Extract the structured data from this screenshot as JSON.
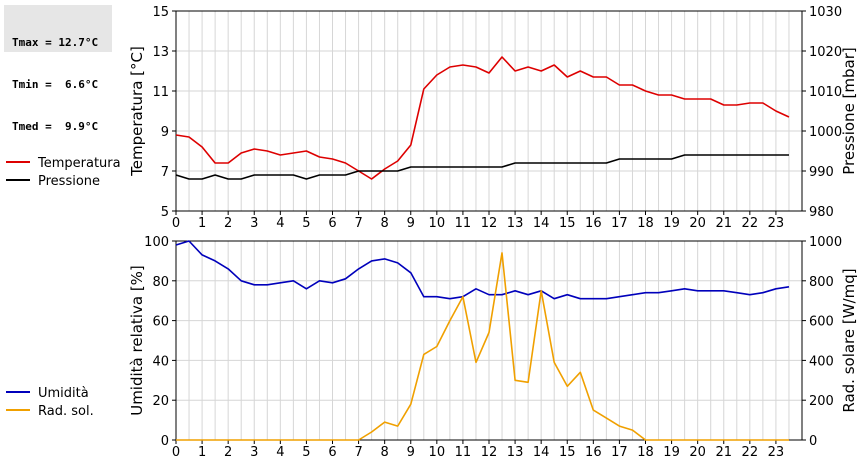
{
  "stats": {
    "tmax": "Tmax = 12.7°C",
    "tmin": "Tmin =  6.6°C",
    "tmed": "Tmed =  9.9°C"
  },
  "colors": {
    "temperature": "#dd0000",
    "pressure": "#000000",
    "humidity": "#0000bb",
    "solar": "#f0a000",
    "grid": "#d6d6d6"
  },
  "chart_data": [
    {
      "type": "line",
      "title": "",
      "x_ticks": [
        "0",
        "1",
        "2",
        "3",
        "4",
        "5",
        "6",
        "7",
        "8",
        "9",
        "10",
        "11",
        "12",
        "13",
        "14",
        "15",
        "16",
        "17",
        "18",
        "19",
        "20",
        "21",
        "22",
        "23"
      ],
      "xlim": [
        0,
        24
      ],
      "ylabel": "Temperatura [°C]",
      "ylim": [
        5,
        15
      ],
      "y_ticks": [
        "5",
        "7",
        "9",
        "11",
        "13",
        "15"
      ],
      "y2label": "Pressione [mbar]",
      "y2lim": [
        980,
        1030
      ],
      "y2_ticks": [
        "980",
        "990",
        "1000",
        "1010",
        "1020",
        "1030"
      ],
      "grid": true,
      "legend_position": "left",
      "series": [
        {
          "name": "Temperatura",
          "axis": "left",
          "x": [
            0,
            0.5,
            1,
            1.5,
            2,
            2.5,
            3,
            3.5,
            4,
            4.5,
            5,
            5.5,
            6,
            6.5,
            7,
            7.5,
            8,
            8.5,
            9,
            9.5,
            10,
            10.5,
            11,
            11.5,
            12,
            12.5,
            13,
            13.5,
            14,
            14.5,
            15,
            15.5,
            16,
            16.5,
            17,
            17.5,
            18,
            18.5,
            19,
            19.5,
            20,
            20.5,
            21,
            21.5,
            22,
            22.5,
            23,
            23.5
          ],
          "values": [
            8.8,
            8.7,
            8.2,
            7.4,
            7.4,
            7.9,
            8.1,
            8.0,
            7.8,
            7.9,
            8.0,
            7.7,
            7.6,
            7.4,
            7.0,
            6.6,
            7.1,
            7.5,
            8.3,
            11.1,
            11.8,
            12.2,
            12.3,
            12.2,
            11.9,
            12.7,
            12.0,
            12.2,
            12.0,
            12.3,
            11.7,
            12.0,
            11.7,
            11.7,
            11.3,
            11.3,
            11.0,
            10.8,
            10.8,
            10.6,
            10.6,
            10.6,
            10.3,
            10.3,
            10.4,
            10.4,
            10.0,
            9.7
          ]
        },
        {
          "name": "Pressione",
          "axis": "right",
          "x": [
            0,
            0.5,
            1,
            1.5,
            2,
            2.5,
            3,
            3.5,
            4,
            4.5,
            5,
            5.5,
            6,
            6.5,
            7,
            7.5,
            8,
            8.5,
            9,
            9.5,
            10,
            10.5,
            11,
            11.5,
            12,
            12.5,
            13,
            13.5,
            14,
            14.5,
            15,
            15.5,
            16,
            16.5,
            17,
            17.5,
            18,
            18.5,
            19,
            19.5,
            20,
            20.5,
            21,
            21.5,
            22,
            22.5,
            23,
            23.5
          ],
          "values": [
            989,
            988,
            988,
            989,
            988,
            988,
            989,
            989,
            989,
            989,
            988,
            989,
            989,
            989,
            990,
            990,
            990,
            990,
            991,
            991,
            991,
            991,
            991,
            991,
            991,
            991,
            992,
            992,
            992,
            992,
            992,
            992,
            992,
            992,
            993,
            993,
            993,
            993,
            993,
            994,
            994,
            994,
            994,
            994,
            994,
            994,
            994,
            994
          ]
        }
      ]
    },
    {
      "type": "line",
      "title": "",
      "x_ticks": [
        "0",
        "1",
        "2",
        "3",
        "4",
        "5",
        "6",
        "7",
        "8",
        "9",
        "10",
        "11",
        "12",
        "13",
        "14",
        "15",
        "16",
        "17",
        "18",
        "19",
        "20",
        "21",
        "22",
        "23"
      ],
      "xlim": [
        0,
        24
      ],
      "ylabel": "Umidità relativa [%]",
      "ylim": [
        0,
        100
      ],
      "y_ticks": [
        "0",
        "20",
        "40",
        "60",
        "80",
        "100"
      ],
      "y2label": "Rad. solare [W/mq]",
      "y2lim": [
        0,
        1000
      ],
      "y2_ticks": [
        "0",
        "200",
        "400",
        "600",
        "800",
        "1000"
      ],
      "grid": true,
      "legend_position": "left",
      "series": [
        {
          "name": "Umidità",
          "axis": "left",
          "x": [
            0,
            0.5,
            1,
            1.5,
            2,
            2.5,
            3,
            3.5,
            4,
            4.5,
            5,
            5.5,
            6,
            6.5,
            7,
            7.5,
            8,
            8.5,
            9,
            9.5,
            10,
            10.5,
            11,
            11.5,
            12,
            12.5,
            13,
            13.5,
            14,
            14.5,
            15,
            15.5,
            16,
            16.5,
            17,
            17.5,
            18,
            18.5,
            19,
            19.5,
            20,
            20.5,
            21,
            21.5,
            22,
            22.5,
            23,
            23.5
          ],
          "values": [
            98,
            100,
            93,
            90,
            86,
            80,
            78,
            78,
            79,
            80,
            76,
            80,
            79,
            81,
            86,
            90,
            91,
            89,
            84,
            72,
            72,
            71,
            72,
            76,
            73,
            73,
            75,
            73,
            75,
            71,
            73,
            71,
            71,
            71,
            72,
            73,
            74,
            74,
            75,
            76,
            75,
            75,
            75,
            74,
            73,
            74,
            76,
            77
          ]
        },
        {
          "name": "Rad. sol.",
          "axis": "right",
          "x": [
            0,
            0.5,
            1,
            1.5,
            2,
            2.5,
            3,
            3.5,
            4,
            4.5,
            5,
            5.5,
            6,
            6.5,
            7,
            7.5,
            8,
            8.5,
            9,
            9.5,
            10,
            10.5,
            11,
            11.5,
            12,
            12.5,
            13,
            13.5,
            14,
            14.5,
            15,
            15.5,
            16,
            16.5,
            17,
            17.5,
            18,
            18.5,
            19,
            19.5,
            20,
            20.5,
            21,
            21.5,
            22,
            22.5,
            23,
            23.5
          ],
          "values": [
            0,
            0,
            0,
            0,
            0,
            0,
            0,
            0,
            0,
            0,
            0,
            0,
            0,
            0,
            0,
            40,
            90,
            70,
            180,
            430,
            470,
            600,
            720,
            390,
            540,
            940,
            300,
            290,
            750,
            390,
            270,
            340,
            150,
            110,
            70,
            50,
            0,
            0,
            0,
            0,
            0,
            0,
            0,
            0,
            0,
            0,
            0,
            0
          ]
        }
      ]
    }
  ]
}
